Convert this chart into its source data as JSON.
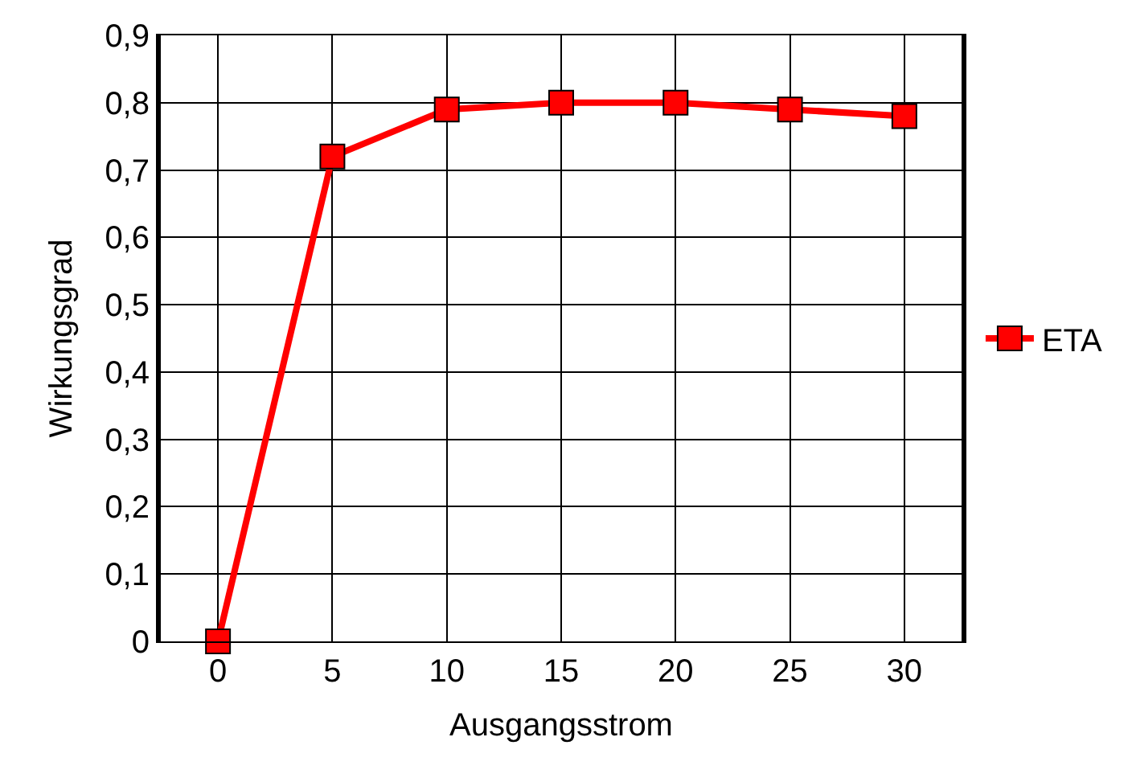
{
  "chart_data": {
    "type": "line",
    "xlabel": "Ausgangsstrom",
    "ylabel": "Wirkungsgrad",
    "x": [
      0,
      5,
      10,
      15,
      20,
      25,
      30
    ],
    "series": [
      {
        "name": "ETA",
        "color": "#ff0000",
        "values": [
          0,
          0.72,
          0.79,
          0.8,
          0.8,
          0.79,
          0.78
        ]
      }
    ],
    "xlim": [
      -2.5,
      32.5
    ],
    "xticks": [
      0,
      5,
      10,
      15,
      20,
      25,
      30
    ],
    "ylim": [
      0,
      0.9
    ],
    "yticks": [
      {
        "value": 0,
        "label": "0"
      },
      {
        "value": 0.1,
        "label": "0,1"
      },
      {
        "value": 0.2,
        "label": "0,2"
      },
      {
        "value": 0.3,
        "label": "0,3"
      },
      {
        "value": 0.4,
        "label": "0,4"
      },
      {
        "value": 0.5,
        "label": "0,5"
      },
      {
        "value": 0.6,
        "label": "0,6"
      },
      {
        "value": 0.7,
        "label": "0,7"
      },
      {
        "value": 0.8,
        "label": "0,8"
      },
      {
        "value": 0.9,
        "label": "0,9"
      }
    ],
    "grid": true,
    "legend": "right",
    "marker": "square",
    "line_style": "solid"
  }
}
